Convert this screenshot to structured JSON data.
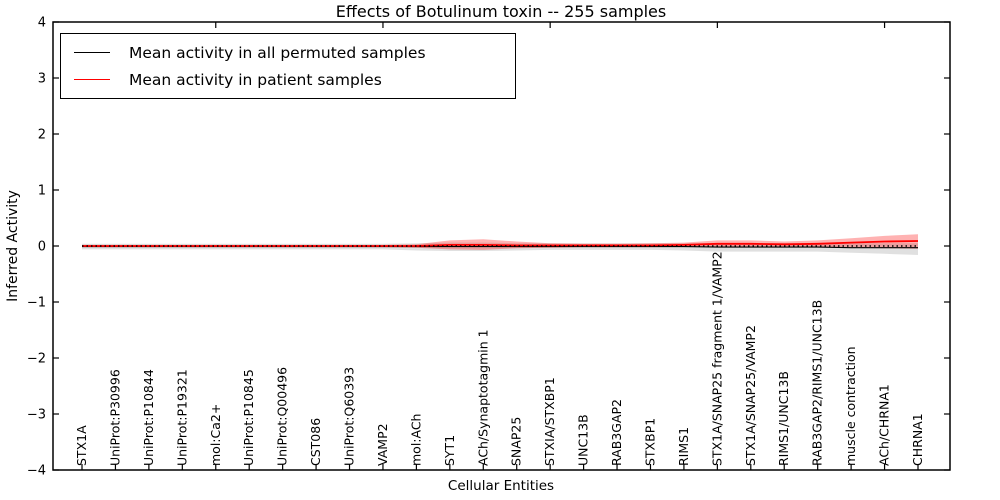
{
  "chart": {
    "title": "Effects of Botulinum toxin -- 255 samples",
    "xlabel": "Cellular Entities",
    "ylabel": "Inferred Activity",
    "legend": [
      {
        "label": "Mean activity in all permuted samples",
        "color": "#000000"
      },
      {
        "label": "Mean activity in patient samples",
        "color": "#ff0000"
      }
    ]
  },
  "chart_data": {
    "type": "line",
    "title": "Effects of Botulinum toxin -- 255 samples",
    "xlabel": "Cellular Entities",
    "ylabel": "Inferred Activity",
    "ylim": [
      -4,
      4
    ],
    "yticks": [
      -4,
      -3,
      -2,
      -1,
      0,
      1,
      2,
      3,
      4
    ],
    "grid": false,
    "legend_position": "upper left",
    "zero_line": true,
    "top_tick_indices": [
      4,
      9,
      14,
      19,
      24
    ],
    "categories": [
      "STX1A",
      "UniProt:P30996",
      "UniProt:P10844",
      "UniProt:P19321",
      "mol:Ca2+",
      "UniProt:P10845",
      "UniProt:Q00496",
      "CST086",
      "UniProt:Q60393",
      "VAMP2",
      "mol:ACh",
      "SYT1",
      "ACh/Synaptotagmin 1",
      "SNAP25",
      "STXIA/STXBP1",
      "UNC13B",
      "RAB3GAP2",
      "STXBP1",
      "RIMS1",
      "STX1A/SNAP25 fragment 1/VAMP2",
      "STX1A/SNAP25/VAMP2",
      "RIMS1/UNC13B",
      "RAB3GAP2/RIMS1/UNC13B",
      "muscle contraction",
      "ACh/CHRNA1",
      "CHRNA1"
    ],
    "series": [
      {
        "name": "Mean activity in all permuted samples",
        "color": "#000000",
        "line_width": 1.1,
        "band_color": "rgba(0,0,0,0.12)",
        "values": [
          -0.01,
          -0.01,
          -0.01,
          -0.01,
          -0.01,
          -0.01,
          -0.01,
          -0.01,
          -0.01,
          -0.01,
          -0.01,
          -0.01,
          -0.01,
          -0.01,
          -0.01,
          -0.01,
          -0.01,
          -0.01,
          -0.01,
          -0.02,
          -0.02,
          -0.02,
          -0.02,
          -0.03,
          -0.03,
          -0.03
        ],
        "band_upper": [
          0.04,
          0.04,
          0.04,
          0.04,
          0.04,
          0.04,
          0.04,
          0.04,
          0.04,
          0.04,
          0.05,
          0.06,
          0.06,
          0.05,
          0.05,
          0.05,
          0.05,
          0.05,
          0.05,
          0.05,
          0.05,
          0.05,
          0.05,
          0.05,
          0.05,
          0.05
        ],
        "band_lower": [
          -0.06,
          -0.06,
          -0.06,
          -0.06,
          -0.06,
          -0.06,
          -0.06,
          -0.06,
          -0.06,
          -0.06,
          -0.08,
          -0.09,
          -0.09,
          -0.08,
          -0.07,
          -0.07,
          -0.07,
          -0.07,
          -0.08,
          -0.1,
          -0.1,
          -0.1,
          -0.1,
          -0.12,
          -0.14,
          -0.16
        ]
      },
      {
        "name": "Mean activity in patient samples",
        "color": "#ff0000",
        "line_width": 1.8,
        "band_color": "rgba(255,0,0,0.30)",
        "values": [
          0,
          0,
          0,
          0,
          0,
          0,
          0,
          0,
          0,
          0,
          0,
          0.02,
          0.02,
          0.01,
          0.01,
          0.01,
          0.01,
          0.01,
          0.02,
          0.04,
          0.04,
          0.03,
          0.04,
          0.06,
          0.08,
          0.09
        ],
        "band_upper": [
          0.02,
          0.02,
          0.02,
          0.02,
          0.02,
          0.02,
          0.02,
          0.02,
          0.02,
          0.02,
          0.03,
          0.1,
          0.12,
          0.08,
          0.05,
          0.04,
          0.04,
          0.05,
          0.06,
          0.1,
          0.1,
          0.08,
          0.1,
          0.14,
          0.18,
          0.21
        ],
        "band_lower": [
          -0.02,
          -0.02,
          -0.02,
          -0.02,
          -0.02,
          -0.02,
          -0.02,
          -0.02,
          -0.02,
          -0.02,
          -0.03,
          -0.06,
          -0.07,
          -0.04,
          -0.03,
          -0.02,
          -0.02,
          -0.02,
          -0.02,
          -0.01,
          -0.01,
          -0.01,
          -0.02,
          -0.03,
          -0.04,
          -0.05
        ]
      }
    ]
  }
}
